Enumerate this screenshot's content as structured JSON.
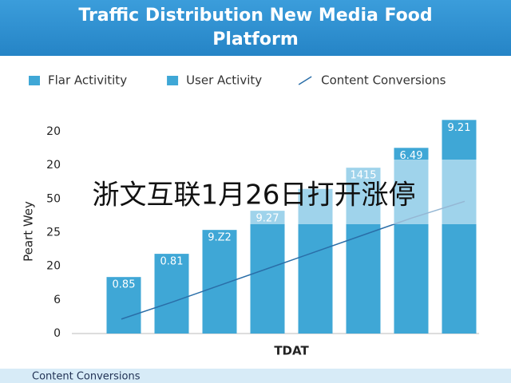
{
  "chart_data": {
    "type": "bar",
    "title": [
      "Traffic Distribution New Media Food",
      "Platform"
    ],
    "legend": [
      {
        "label": "Flar Activitity",
        "color": "#3fa7d6",
        "marker": "box"
      },
      {
        "label": "User Activity",
        "color": "#3fa7d6",
        "marker": "box"
      },
      {
        "label": "Content Conversions",
        "color": "#2a6ea8",
        "marker": "line"
      }
    ],
    "y_label": "Peart Wey",
    "x_label": "TDAT",
    "categories": [
      null,
      null,
      null,
      null,
      null,
      null,
      null,
      null
    ],
    "series": [
      {
        "type": "bar",
        "color": "#3fa7d6",
        "values": [
          1.68,
          2.37,
          3.08,
          3.65,
          4.3,
          4.93,
          5.52,
          6.35
        ]
      },
      {
        "type": "line",
        "color": "#2a6ea8",
        "values": [
          0.43,
          0.93,
          1.43,
          1.93,
          2.43,
          2.93,
          3.43,
          3.93
        ]
      }
    ],
    "bar_labels": [
      "0.85",
      "0.81",
      "9.Z2",
      "9.27",
      null,
      "1415",
      "6.49",
      "9.21"
    ],
    "ylim": [
      0,
      6.5
    ],
    "yticks": [
      {
        "value": 0,
        "label": "0"
      },
      {
        "value": 1,
        "label": "6"
      },
      {
        "value": 2,
        "label": "20"
      },
      {
        "value": 3,
        "label": "25"
      },
      {
        "value": 4,
        "label": "50"
      },
      {
        "value": 5,
        "label": "20"
      },
      {
        "value": 6,
        "label": "20"
      }
    ],
    "overlay_text": "浙文互联1月26日打开涨停",
    "footer": "Content Conversions"
  }
}
